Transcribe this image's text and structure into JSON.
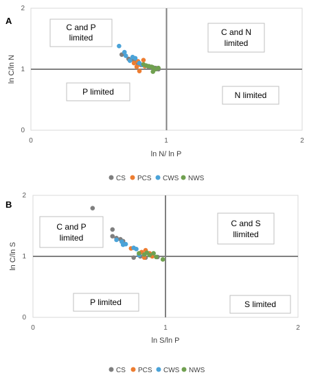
{
  "chart_data": [
    {
      "panel_label": "A",
      "type": "scatter",
      "xlabel": "ln N/ ln P",
      "ylabel": "ln C/ln N",
      "xlim": [
        0,
        2
      ],
      "ylim": [
        0,
        2
      ],
      "x_ticks": [
        "0",
        "1",
        "2"
      ],
      "y_ticks": [
        "0",
        "1",
        "2"
      ],
      "reference_lines": {
        "x": 1,
        "y": 1
      },
      "grid": false,
      "quadrant_labels": [
        {
          "id": "top-left",
          "lines": [
            "C and P",
            "limited"
          ]
        },
        {
          "id": "top-right",
          "lines": [
            "C and N",
            "limited"
          ]
        },
        {
          "id": "bottom-left",
          "lines": [
            "P limited"
          ]
        },
        {
          "id": "bottom-right",
          "lines": [
            "N limited"
          ]
        }
      ],
      "legend_position": "bottom",
      "series": [
        {
          "name": "CS",
          "color": "#7f7f7f",
          "points": [
            [
              0.67,
              1.24
            ],
            [
              0.72,
              1.17
            ],
            [
              0.75,
              1.16
            ],
            [
              0.77,
              1.12
            ],
            [
              0.79,
              1.08
            ],
            [
              0.85,
              1.06
            ],
            [
              0.87,
              1.03
            ],
            [
              0.92,
              1.02
            ],
            [
              0.94,
              1.0
            ]
          ]
        },
        {
          "name": "PCS",
          "color": "#ed7d31",
          "points": [
            [
              0.76,
              1.1
            ],
            [
              0.79,
              1.13
            ],
            [
              0.81,
              1.07
            ],
            [
              0.83,
              1.15
            ],
            [
              0.84,
              1.05
            ],
            [
              0.8,
              0.97
            ],
            [
              0.78,
              1.04
            ]
          ]
        },
        {
          "name": "CWS",
          "color": "#4ba3d8",
          "points": [
            [
              0.65,
              1.38
            ],
            [
              0.69,
              1.28
            ],
            [
              0.7,
              1.22
            ],
            [
              0.73,
              1.14
            ],
            [
              0.75,
              1.2
            ],
            [
              0.77,
              1.18
            ],
            [
              0.8,
              1.1
            ],
            [
              0.82,
              1.07
            ]
          ]
        },
        {
          "name": "NWS",
          "color": "#70a050",
          "points": [
            [
              0.83,
              1.08
            ],
            [
              0.85,
              1.06
            ],
            [
              0.87,
              1.05
            ],
            [
              0.89,
              1.04
            ],
            [
              0.9,
              1.03
            ],
            [
              0.92,
              1.0
            ],
            [
              0.9,
              0.96
            ],
            [
              0.94,
              1.02
            ]
          ]
        }
      ]
    },
    {
      "panel_label": "B",
      "type": "scatter",
      "xlabel": "ln S/ln P",
      "ylabel": "ln C/ln S",
      "xlim": [
        0,
        2
      ],
      "ylim": [
        0,
        2
      ],
      "x_ticks": [
        "0",
        "1",
        "2"
      ],
      "y_ticks": [
        "0",
        "1",
        "2"
      ],
      "reference_lines": {
        "x": 1,
        "y": 1
      },
      "grid": false,
      "quadrant_labels": [
        {
          "id": "top-left",
          "lines": [
            "C and P",
            "limited"
          ]
        },
        {
          "id": "top-right",
          "lines": [
            "C and S",
            "llimited"
          ]
        },
        {
          "id": "bottom-left",
          "lines": [
            "P limited"
          ]
        },
        {
          "id": "bottom-right",
          "lines": [
            "S limited"
          ]
        }
      ],
      "legend_position": "bottom",
      "series": [
        {
          "name": "CS",
          "color": "#7f7f7f",
          "points": [
            [
              0.45,
              1.79
            ],
            [
              0.6,
              1.44
            ],
            [
              0.6,
              1.33
            ],
            [
              0.63,
              1.3
            ],
            [
              0.66,
              1.28
            ],
            [
              0.68,
              1.25
            ],
            [
              0.76,
              0.98
            ],
            [
              0.81,
              1.0
            ],
            [
              0.85,
              0.98
            ],
            [
              0.94,
              0.99
            ]
          ]
        },
        {
          "name": "PCS",
          "color": "#ed7d31",
          "points": [
            [
              0.74,
              1.13
            ],
            [
              0.82,
              1.07
            ],
            [
              0.85,
              1.1
            ],
            [
              0.88,
              1.05
            ],
            [
              0.9,
              1.0
            ],
            [
              0.84,
              0.98
            ]
          ]
        },
        {
          "name": "CWS",
          "color": "#4ba3d8",
          "points": [
            [
              0.63,
              1.27
            ],
            [
              0.67,
              1.24
            ],
            [
              0.68,
              1.19
            ],
            [
              0.7,
              1.2
            ],
            [
              0.76,
              1.14
            ],
            [
              0.78,
              1.12
            ],
            [
              0.8,
              1.02
            ]
          ]
        },
        {
          "name": "NWS",
          "color": "#70a050",
          "points": [
            [
              0.8,
              1.05
            ],
            [
              0.84,
              1.03
            ],
            [
              0.86,
              1.06
            ],
            [
              0.88,
              1.02
            ],
            [
              0.91,
              1.05
            ],
            [
              0.93,
              0.99
            ],
            [
              0.98,
              0.95
            ]
          ]
        }
      ]
    }
  ]
}
